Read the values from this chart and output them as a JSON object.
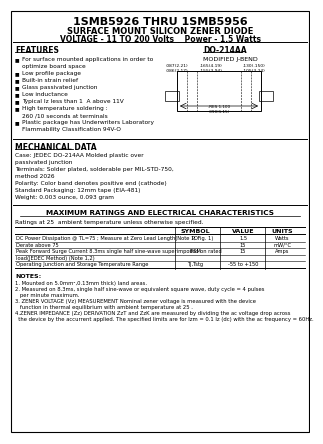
{
  "title": "1SMB5926 THRU 1SMB5956",
  "subtitle": "SURFACE MOUNT SILICON ZENER DIODE",
  "subtitle2": "VOLTAGE - 11 TO 200 Volts    Power - 1.5 Watts",
  "features_title": "FEATURES",
  "package_title": "DO-214AA",
  "package_subtitle": "MODIFIED J-BEND",
  "mech_title": "MECHANICAL DATA",
  "mech_lines": [
    "Case: JEDEC DO-214AA Molded plastic over",
    "passivated junction",
    "Terminals: Solder plated, solderable per MIL-STD-750,",
    "method 2026",
    "Polarity: Color band denotes positive end (cathode)",
    "Standard Packaging: 12mm tape (EIA-481)",
    "Weight: 0.003 ounce, 0.093 gram"
  ],
  "feature_lines": [
    [
      "For surface mounted applications in order to",
      true
    ],
    [
      "optimize board space",
      false
    ],
    [
      "Low profile package",
      true
    ],
    [
      "Built-in strain relief",
      true
    ],
    [
      "Glass passivated junction",
      true
    ],
    [
      "Low inductance",
      true
    ],
    [
      "Typical Iz less than 1  A above 11V",
      true
    ],
    [
      "High temperature soldering :",
      true
    ],
    [
      "260 /10 seconds at terminals",
      false
    ],
    [
      "Plastic package has Underwriters Laboratory",
      true
    ],
    [
      "Flammability Classification 94V-O",
      false
    ]
  ],
  "table_title": "MAXIMUM RATINGS AND ELECTRICAL CHARACTERISTICS",
  "table_note": "Ratings at 25  ambient temperature unless otherwise specified.",
  "notes_title": "NOTES:",
  "note_lines": [
    "1. Mounted on 5.0mm²,0.13mm thick) land areas.",
    "2. Measured on 8.3ms, single half sine-wave or equivalent square wave, duty cycle = 4 pulses",
    "   per minute maximum.",
    "3. ZENER VOLTAGE (Vz) MEASUREMENT Nominal zener voltage is measured with the device",
    "   function in thermal equilibrium with ambient temperature at 25 .",
    "4.ZENER IMPEDANCE (Zz) DERIVATION ZzT and ZzK are measured by dividing the ac voltage drop across",
    "  the device by the accurrent applied. The specified limits are for Izm = 0.1 Iz (dc) with the ac frequency = 60Hz."
  ],
  "table_rows": [
    [
      "DC Power Dissipation @ TL=75 ; Measure at Zero Lead Length(Note 1, Fig. 1)",
      "PD",
      "1.5",
      "Watts"
    ],
    [
      "Derate above 75",
      "",
      "15",
      "mW/°C"
    ],
    [
      "Peak Forward Surge Current 8.3ms single half sine-wave superimposed on rated",
      "IFSM",
      "15",
      "Amps"
    ],
    [
      "load(JEDEC Method) (Note 1,2)",
      "",
      "",
      ""
    ],
    [
      "Operating Junction and Storage Temperature Range",
      "TJ,Tstg",
      "-55 to +150",
      ""
    ]
  ],
  "bg_color": "#ffffff",
  "text_color": "#000000",
  "line_color": "#000000"
}
